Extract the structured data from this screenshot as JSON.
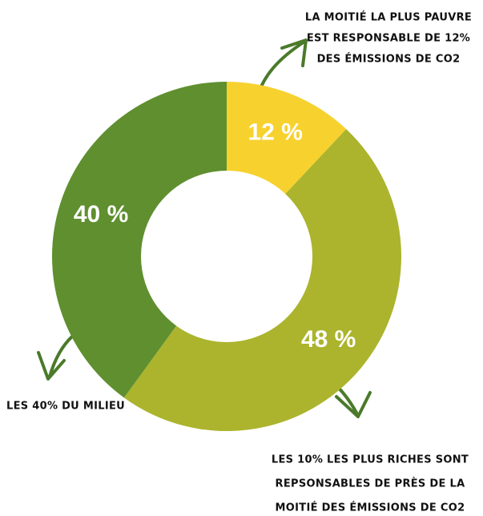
{
  "chart_data": {
    "type": "donut",
    "categories": [
      "La moitié la plus pauvre",
      "Les 10% les plus riches",
      "Les 40% du milieu"
    ],
    "values": [
      12,
      48,
      40
    ],
    "value_labels": [
      "12 %",
      "48 %",
      "40 %"
    ],
    "colors": [
      "#f7d12e",
      "#abb42c",
      "#5f8f2f"
    ],
    "annotations": [
      {
        "lines": [
          "LA MOITIÉ LA PLUS PAUVRE",
          "EST RESPONSABLE DE 12%",
          "DES ÉMISSIONS DE CO2"
        ]
      },
      {
        "lines": [
          "LES 10% LES PLUS RICHES SONT",
          "REPSONSABLES DE PRÈS DE LA",
          "MOITIÉ DES ÉMISSIONS DE CO2"
        ]
      },
      {
        "lines": [
          "LES 40% DU MILIEU"
        ]
      }
    ]
  }
}
